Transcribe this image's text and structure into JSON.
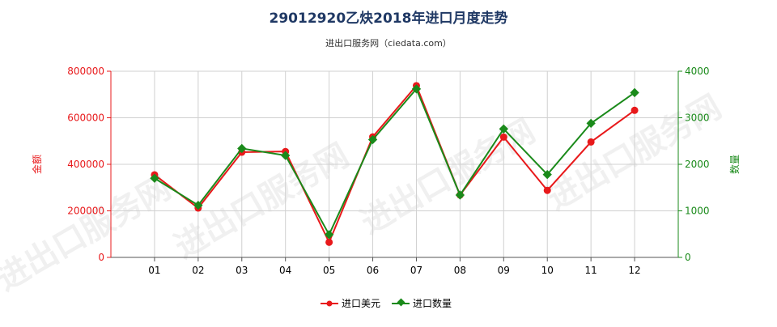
{
  "chart_data": {
    "type": "line",
    "title": "29012920乙炔2018年进口月度走势",
    "subtitle": "进出口服务网（ciedata.com）",
    "watermark": "进出口服务网",
    "categories": [
      "01",
      "02",
      "03",
      "04",
      "05",
      "06",
      "07",
      "08",
      "09",
      "10",
      "11",
      "12"
    ],
    "y_left": {
      "label": "金额",
      "ticks": [
        "0",
        "200000",
        "400000",
        "600000",
        "800000"
      ],
      "range": [
        0,
        800000
      ]
    },
    "y_right": {
      "label": "数量",
      "ticks": [
        "0",
        "1000",
        "2000",
        "3000",
        "4000"
      ],
      "range": [
        0,
        4000
      ]
    },
    "series": [
      {
        "name": "进口美元",
        "axis": "left",
        "color": "#e8191b",
        "values": [
          355000,
          212000,
          452000,
          455000,
          65000,
          518000,
          738000,
          268000,
          517000,
          288000,
          496000,
          632000
        ]
      },
      {
        "name": "进口数量",
        "axis": "right",
        "color": "#1a8a1a",
        "values": [
          1700,
          1120,
          2340,
          2190,
          490,
          2530,
          3620,
          1340,
          2760,
          1780,
          2880,
          3540
        ]
      }
    ],
    "grid": true,
    "legend": "bottom-center"
  }
}
